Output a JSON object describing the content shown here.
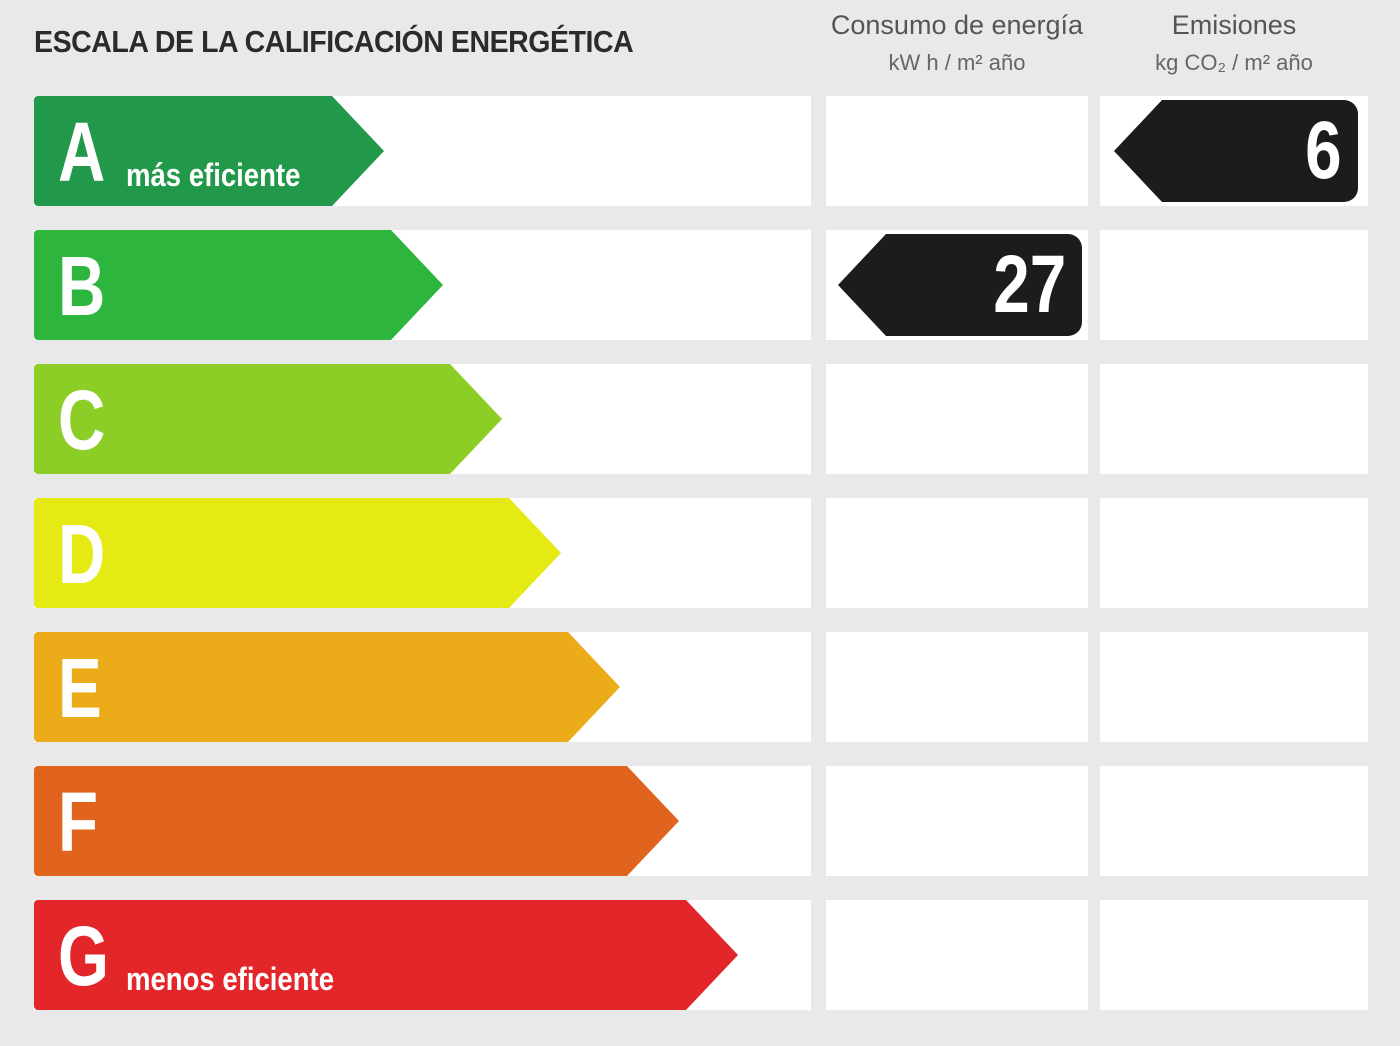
{
  "title": "ESCALA DE LA CALIFICACIÓN ENERGÉTICA",
  "columns": {
    "consumo": {
      "label": "Consumo de energía",
      "unit": "kW h / m² año"
    },
    "emisiones": {
      "label": "Emisiones",
      "unit": "kg CO₂ / m² año"
    }
  },
  "chart_data": {
    "type": "bar",
    "categories": [
      "A",
      "B",
      "C",
      "D",
      "E",
      "F",
      "G"
    ],
    "bands": [
      {
        "letter": "A",
        "caption": "más eficiente",
        "color": "#22994a"
      },
      {
        "letter": "B",
        "caption": "",
        "color": "#2eb53d"
      },
      {
        "letter": "C",
        "caption": "",
        "color": "#8cce26"
      },
      {
        "letter": "D",
        "caption": "",
        "color": "#e5ea15"
      },
      {
        "letter": "E",
        "caption": "",
        "color": "#ecab18"
      },
      {
        "letter": "F",
        "caption": "",
        "color": "#e0641e"
      },
      {
        "letter": "G",
        "caption": "menos eficiente",
        "color": "#e2262a"
      }
    ],
    "ratings": [
      {
        "column": "consumo",
        "value": "27",
        "class": "B"
      },
      {
        "column": "emisiones",
        "value": "6",
        "class": "A"
      }
    ],
    "badge_color": "#1e1b1c"
  }
}
